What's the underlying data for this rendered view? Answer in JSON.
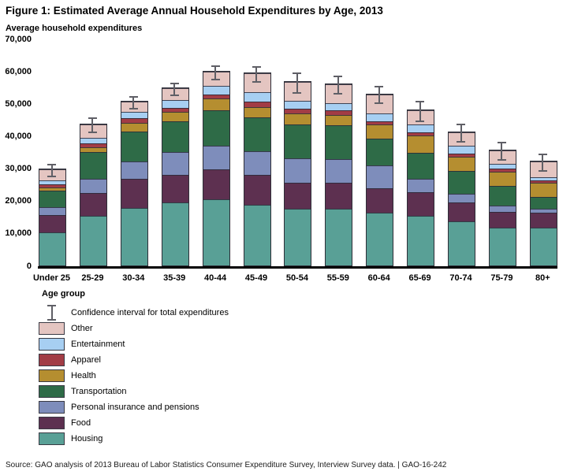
{
  "title": "Figure 1: Estimated Average Annual Household Expenditures by Age, 2013",
  "y_axis_title": "Average household expenditures",
  "x_axis_title": "Age group",
  "source": "Source: GAO analysis of 2013 Bureau of Labor Statistics Consumer Expenditure Survey, Interview Survey data.  |  GAO-16-242",
  "colors": {
    "housing": "#59A096",
    "food": "#5D3050",
    "personal_insurance": "#7E8DBB",
    "transportation": "#2E6B47",
    "health": "#B58E30",
    "apparel": "#A23C45",
    "entertainment": "#A7CFF2",
    "other": "#E4C5C1",
    "bar_border": "#2E2E38",
    "error_bar": "#5F5F66",
    "axis": "#000000"
  },
  "legend": [
    {
      "type": "ci",
      "label": "Confidence interval for total expenditures"
    },
    {
      "type": "swatch",
      "key": "other",
      "label": "Other"
    },
    {
      "type": "swatch",
      "key": "entertainment",
      "label": "Entertainment"
    },
    {
      "type": "swatch",
      "key": "apparel",
      "label": "Apparel"
    },
    {
      "type": "swatch",
      "key": "health",
      "label": "Health"
    },
    {
      "type": "swatch",
      "key": "transportation",
      "label": "Transportation"
    },
    {
      "type": "swatch",
      "key": "personal_insurance",
      "label": "Personal insurance and pensions"
    },
    {
      "type": "swatch",
      "key": "food",
      "label": "Food"
    },
    {
      "type": "swatch",
      "key": "housing",
      "label": "Housing"
    }
  ],
  "chart_data": {
    "type": "bar",
    "stacked": true,
    "title": "Figure 1: Estimated Average Annual Household Expenditures by Age, 2013",
    "ylabel": "Average household expenditures",
    "xlabel": "Age group",
    "ylim": [
      0,
      70000
    ],
    "yticks": [
      0,
      10000,
      20000,
      30000,
      40000,
      50000,
      60000,
      70000
    ],
    "grid": false,
    "legend_position": "bottom-left",
    "categories": [
      "Under 25",
      "25-29",
      "30-34",
      "35-39",
      "40-44",
      "45-49",
      "50-54",
      "55-59",
      "60-64",
      "65-69",
      "70-74",
      "75-79",
      "80+"
    ],
    "series": [
      {
        "key": "housing",
        "name": "Housing",
        "values": [
          10200,
          15200,
          17700,
          19500,
          20300,
          18600,
          17600,
          17400,
          16400,
          15400,
          13500,
          11600,
          11600
        ]
      },
      {
        "key": "food",
        "name": "Food",
        "values": [
          5300,
          7100,
          9100,
          8500,
          9300,
          9300,
          8000,
          8100,
          7500,
          7100,
          5900,
          5000,
          4600
        ]
      },
      {
        "key": "personal_insurance",
        "name": "Personal insurance and pensions",
        "values": [
          2400,
          4500,
          5400,
          6900,
          7300,
          7300,
          7400,
          7300,
          6900,
          4300,
          2800,
          1800,
          1200
        ]
      },
      {
        "key": "transportation",
        "name": "Transportation",
        "values": [
          5100,
          8100,
          9200,
          9500,
          10900,
          10500,
          10600,
          10500,
          8300,
          7900,
          6900,
          6200,
          3700
        ]
      },
      {
        "key": "health",
        "name": "Health",
        "values": [
          1000,
          1600,
          2600,
          3100,
          3700,
          3100,
          3400,
          3200,
          4300,
          5500,
          4500,
          4400,
          4500
        ]
      },
      {
        "key": "apparel",
        "name": "Apparel",
        "values": [
          1000,
          1200,
          1500,
          1200,
          1200,
          1800,
          1300,
          1400,
          1200,
          800,
          1000,
          800,
          600
        ]
      },
      {
        "key": "entertainment",
        "name": "Entertainment",
        "values": [
          1300,
          1800,
          1900,
          2400,
          2800,
          3000,
          2600,
          2300,
          2400,
          2400,
          2300,
          1600,
          1100
        ]
      },
      {
        "key": "other",
        "name": "Other",
        "values": [
          3400,
          4100,
          3200,
          3700,
          4200,
          5700,
          5700,
          5700,
          5700,
          4500,
          4100,
          4000,
          4700
        ]
      }
    ],
    "totals": [
      29700,
      43600,
      50600,
      54800,
      59700,
      59300,
      56600,
      55900,
      52700,
      47900,
      41000,
      35400,
      32000
    ],
    "confidence_interval": {
      "label": "Confidence interval for total expenditures",
      "low": [
        27500,
        41000,
        48400,
        52600,
        57300,
        56700,
        53200,
        53100,
        50000,
        44500,
        38100,
        32600,
        29200
      ],
      "high": [
        31600,
        46000,
        52400,
        56700,
        62100,
        61800,
        59900,
        58900,
        55700,
        51000,
        43900,
        38300,
        34800
      ]
    }
  }
}
